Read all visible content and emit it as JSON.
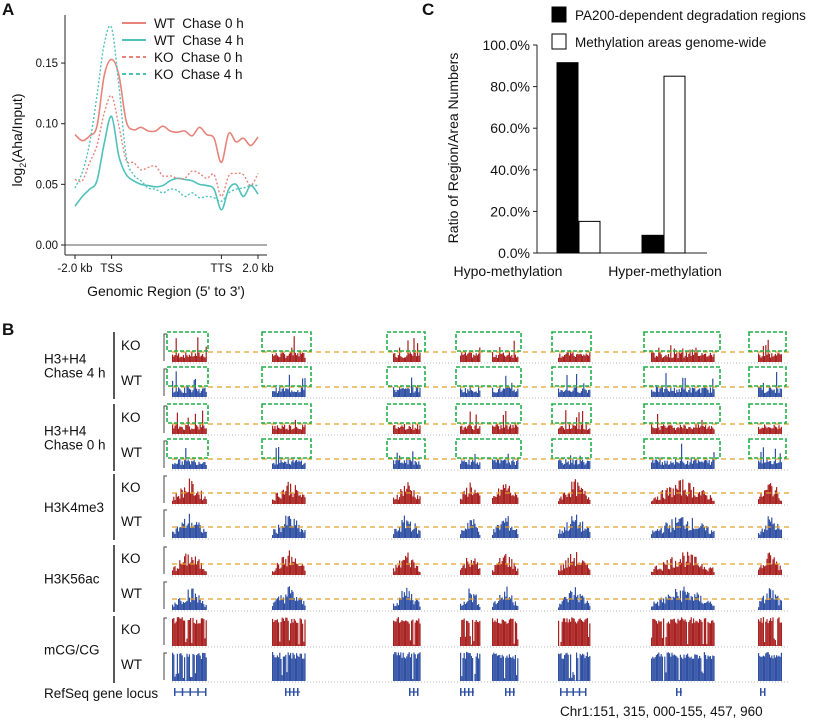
{
  "panel_letters": {
    "a": "A",
    "b": "B",
    "c": "C"
  },
  "chart_data": [
    {
      "panel": "A",
      "type": "line",
      "xlabel": "Genomic Region (5' to 3')",
      "ylabel_main": "log",
      "ylabel_sub": "2",
      "ylabel_rest": "(Aha/Input)",
      "x_tick_labels": [
        {
          "label": "-2.0 kb",
          "index": 0
        },
        {
          "label": "TSS",
          "index": 5
        },
        {
          "label": "TTS",
          "index": 20
        },
        {
          "label": "2.0 kb",
          "index": 25
        }
      ],
      "y_ticks": [
        "0.00",
        "0.05",
        "0.10",
        "0.15"
      ],
      "y_tick_values": [
        0,
        0.05,
        0.1,
        0.15
      ],
      "ylim": [
        -0.028,
        0.19
      ],
      "legend_position": "top-right",
      "series": [
        {
          "name": "WT  Chase 0 h",
          "color": "#e8837a",
          "style": "solid",
          "values": [
            0.091,
            0.086,
            0.09,
            0.098,
            0.14,
            0.153,
            0.14,
            0.102,
            0.095,
            0.097,
            0.094,
            0.094,
            0.098,
            0.094,
            0.093,
            0.094,
            0.09,
            0.097,
            0.091,
            0.088,
            0.068,
            0.092,
            0.085,
            0.088,
            0.082,
            0.089
          ]
        },
        {
          "name": "WT  Chase 4 h",
          "color": "#4fc1bb",
          "style": "solid",
          "values": [
            0.032,
            0.04,
            0.046,
            0.053,
            0.084,
            0.106,
            0.073,
            0.058,
            0.053,
            0.05,
            0.049,
            0.048,
            0.049,
            0.053,
            0.055,
            0.054,
            0.053,
            0.05,
            0.049,
            0.046,
            0.029,
            0.046,
            0.05,
            0.04,
            0.049,
            0.042
          ]
        },
        {
          "name": "KO  Chase 0 h",
          "color": "#e8837a",
          "style": "dotted",
          "values": [
            0.054,
            0.053,
            0.068,
            0.082,
            0.109,
            0.123,
            0.098,
            0.07,
            0.068,
            0.062,
            0.064,
            0.065,
            0.057,
            0.057,
            0.055,
            0.055,
            0.061,
            0.059,
            0.055,
            0.058,
            0.04,
            0.057,
            0.059,
            0.058,
            0.049,
            0.059
          ]
        },
        {
          "name": "KO  Chase 4 h",
          "color": "#4fc1bb",
          "style": "dotted",
          "values": [
            0.047,
            0.06,
            0.084,
            0.123,
            0.166,
            0.179,
            0.131,
            0.073,
            0.058,
            0.053,
            0.047,
            0.046,
            0.043,
            0.046,
            0.045,
            0.04,
            0.043,
            0.039,
            0.04,
            0.039,
            0.036,
            0.043,
            0.046,
            0.047,
            0.049,
            0.049
          ]
        }
      ]
    },
    {
      "panel": "C",
      "type": "bar",
      "categories": [
        "Hypo-methylation",
        "Hyper-methylation"
      ],
      "ylabel": "Ratio of  Region/Area Numbers",
      "y_ticks": [
        "0.0%",
        "20.0%",
        "40.0%",
        "60.0%",
        "80.0%",
        "100.0%"
      ],
      "ylim": [
        0,
        100
      ],
      "legend_position": "top",
      "series": [
        {
          "name": "PA200-dependent degradation regions",
          "color": "#000000",
          "values": [
            91.5,
            8.5
          ]
        },
        {
          "name": "Methylation areas genome-wide",
          "color": "#ffffff",
          "values": [
            15.2,
            85.0
          ]
        }
      ]
    }
  ],
  "panel_b": {
    "groups": [
      {
        "label_line1": "H3+H4",
        "label_line2": "Chase 4 h",
        "rows": [
          "KO",
          "WT"
        ]
      },
      {
        "label_line1": "H3+H4",
        "label_line2": "Chase 0 h",
        "rows": [
          "KO",
          "WT"
        ]
      },
      {
        "label_line1": "H3K4me3",
        "label_line2": "",
        "rows": [
          "KO",
          "WT"
        ]
      },
      {
        "label_line1": "H3K56ac",
        "label_line2": "",
        "rows": [
          "KO",
          "WT"
        ]
      },
      {
        "label_line1": "mCG/CG",
        "label_line2": "",
        "rows": [
          "KO",
          "WT"
        ]
      }
    ],
    "refseq_label": "RefSeq gene locus",
    "coordinates": "Chr1:151, 315, 000-155, 457, 960",
    "colors": {
      "KO": "#a8201f",
      "WT": "#2e4fa3",
      "highlight_box": "#22b04a",
      "threshold_line": "#e2a22a"
    }
  }
}
